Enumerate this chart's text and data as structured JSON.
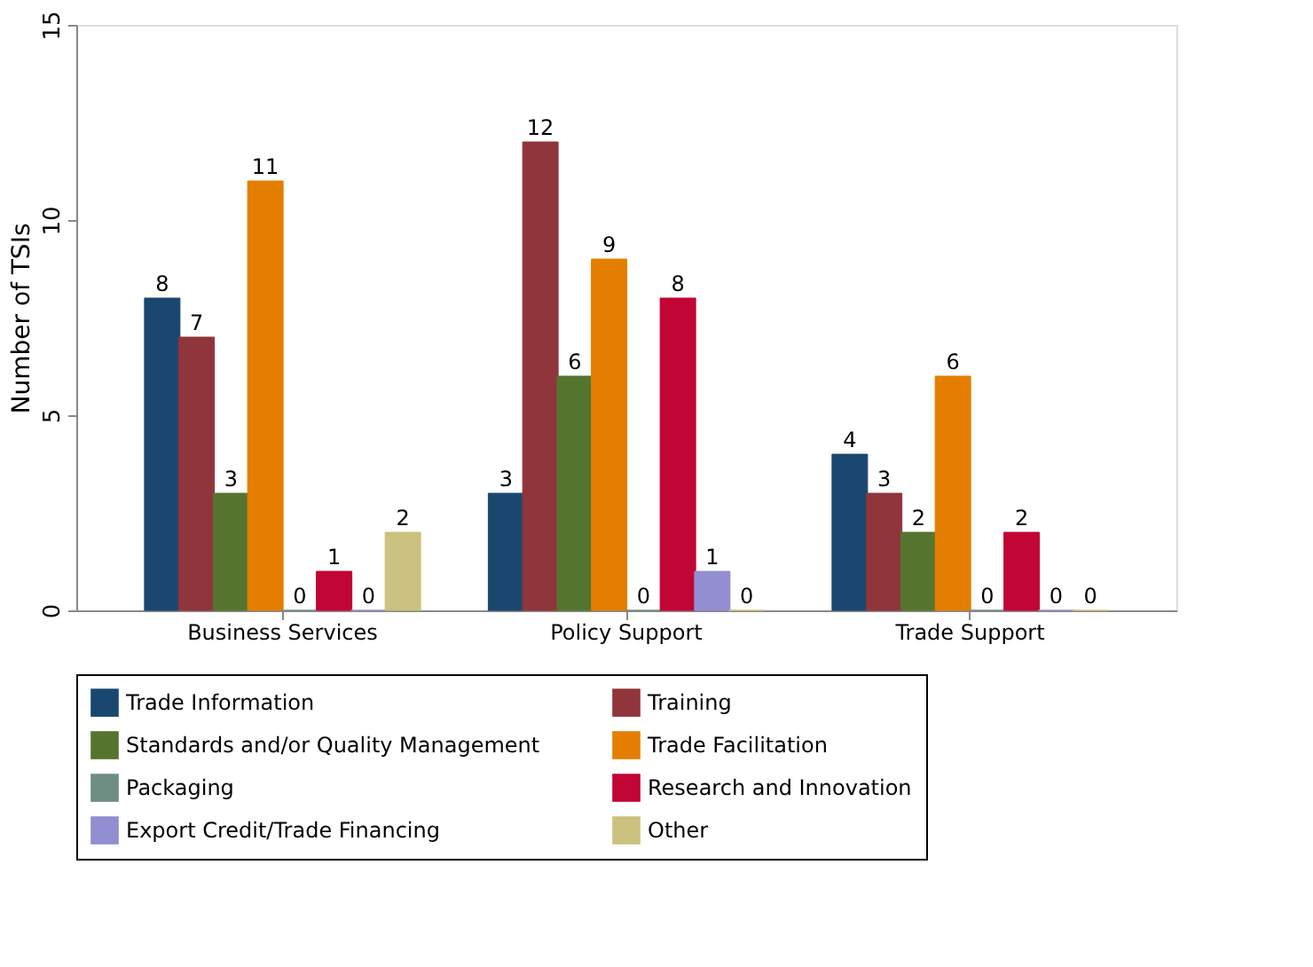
{
  "chart_data": {
    "type": "bar",
    "ylabel": "Number of TSIs",
    "categories": [
      "Business Services",
      "Policy Support",
      "Trade Support"
    ],
    "series": [
      {
        "name": "Trade Information",
        "color": "#1a476f",
        "values": [
          8,
          3,
          4
        ]
      },
      {
        "name": "Training",
        "color": "#90353b",
        "values": [
          7,
          12,
          3
        ]
      },
      {
        "name": "Standards and/or Quality Management",
        "color": "#55752f",
        "values": [
          3,
          6,
          2
        ]
      },
      {
        "name": "Trade Facilitation",
        "color": "#e37e00",
        "values": [
          11,
          9,
          6
        ]
      },
      {
        "name": "Packaging",
        "color": "#6e8e84",
        "values": [
          0,
          0,
          0
        ]
      },
      {
        "name": "Research and Innovation",
        "color": "#c10534",
        "values": [
          1,
          8,
          2
        ]
      },
      {
        "name": "Export Credit/Trade Financing",
        "color": "#938dd2",
        "values": [
          0,
          1,
          0
        ]
      },
      {
        "name": "Other",
        "color": "#cac27e",
        "values": [
          2,
          0,
          0
        ]
      }
    ],
    "ylim": [
      0,
      15
    ],
    "yticks": [
      0,
      5,
      10,
      15
    ],
    "grid": false,
    "legend": "bottom",
    "data_labels": true
  }
}
